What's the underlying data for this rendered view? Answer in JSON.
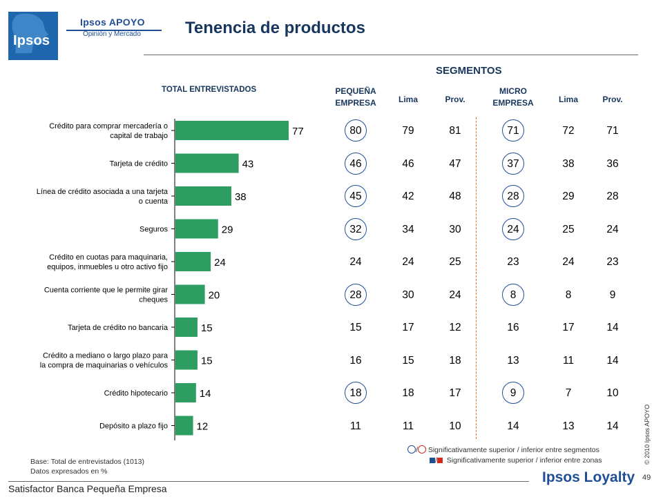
{
  "logo": {
    "ipsos": "Ipsos",
    "brand": "Ipsos APOYO",
    "sub": "Opinión y Mercado"
  },
  "title": "Tenencia de productos",
  "segments_title": "SEGMENTOS",
  "total_header": "TOTAL ENTREVISTADOS",
  "column_headers": {
    "pequena_empresa": [
      "PEQUEÑA",
      "EMPRESA"
    ],
    "pe_lima": "Lima",
    "pe_prov": "Prov.",
    "micro_empresa": [
      "MICRO",
      "EMPRESA"
    ],
    "me_lima": "Lima",
    "me_prov": "Prov."
  },
  "chart_data": {
    "type": "bar",
    "orientation": "horizontal",
    "title": "TOTAL ENTREVISTADOS",
    "categories": [
      [
        "Crédito para comprar mercadería o",
        "capital de trabajo"
      ],
      [
        "Tarjeta de crédito"
      ],
      [
        "Línea de crédito asociada a una tarjeta",
        "o cuenta"
      ],
      [
        "Seguros"
      ],
      [
        "Crédito en cuotas para maquinaria,",
        "equipos, inmuebles u otro activo fijo"
      ],
      [
        "Cuenta corriente que le permite girar",
        "cheques"
      ],
      [
        "Tarjeta de crédito no bancaria"
      ],
      [
        "Crédito a mediano o largo plazo para",
        "la compra de maquinarias o vehículos"
      ],
      [
        "Crédito hipotecario"
      ],
      [
        "Depósito a plazo fijo"
      ]
    ],
    "values": [
      77,
      43,
      38,
      29,
      24,
      20,
      15,
      15,
      14,
      12
    ],
    "xlim": [
      0,
      100
    ],
    "bar_color": "#2e9d62",
    "unit": "%"
  },
  "table": {
    "columns": [
      "pequena_empresa",
      "pe_lima",
      "pe_prov",
      "micro_empresa",
      "me_lima",
      "me_prov"
    ],
    "rows": [
      [
        80,
        79,
        81,
        71,
        72,
        71
      ],
      [
        46,
        46,
        47,
        37,
        38,
        36
      ],
      [
        45,
        42,
        48,
        28,
        29,
        28
      ],
      [
        32,
        34,
        30,
        24,
        25,
        24
      ],
      [
        24,
        24,
        25,
        23,
        24,
        23
      ],
      [
        28,
        30,
        24,
        8,
        8,
        9
      ],
      [
        15,
        17,
        12,
        16,
        17,
        14
      ],
      [
        16,
        15,
        18,
        13,
        11,
        14
      ],
      [
        18,
        18,
        17,
        9,
        7,
        10
      ],
      [
        11,
        11,
        10,
        14,
        13,
        14
      ]
    ],
    "circled": [
      [
        true,
        false,
        false,
        true,
        false,
        false
      ],
      [
        true,
        false,
        false,
        true,
        false,
        false
      ],
      [
        true,
        false,
        false,
        true,
        false,
        false
      ],
      [
        true,
        false,
        false,
        true,
        false,
        false
      ],
      [
        false,
        false,
        false,
        false,
        false,
        false
      ],
      [
        true,
        false,
        false,
        true,
        false,
        false
      ],
      [
        false,
        false,
        false,
        false,
        false,
        false
      ],
      [
        false,
        false,
        false,
        false,
        false,
        false
      ],
      [
        true,
        false,
        false,
        true,
        false,
        false
      ],
      [
        false,
        false,
        false,
        false,
        false,
        false
      ]
    ],
    "circle_color": "#1f4e96"
  },
  "legend": {
    "segments_text": "Significativamente superior / inferior entre segmentos",
    "zones_text": "Significativamente superior / inferior entre zonas",
    "slash": "/",
    "superior_color": "#1f4e96",
    "inferior_color": "#d9261c"
  },
  "footer": {
    "base_line1": "Base: Total de entrevistados (1013)",
    "base_line2": "Datos expresados en %",
    "copyright": "© 2010 Ipsos APOYO",
    "page_number": "49",
    "report_name": "Satisfactor Banca Pequeña Empresa",
    "loyalty": "Ipsos Loyalty"
  }
}
